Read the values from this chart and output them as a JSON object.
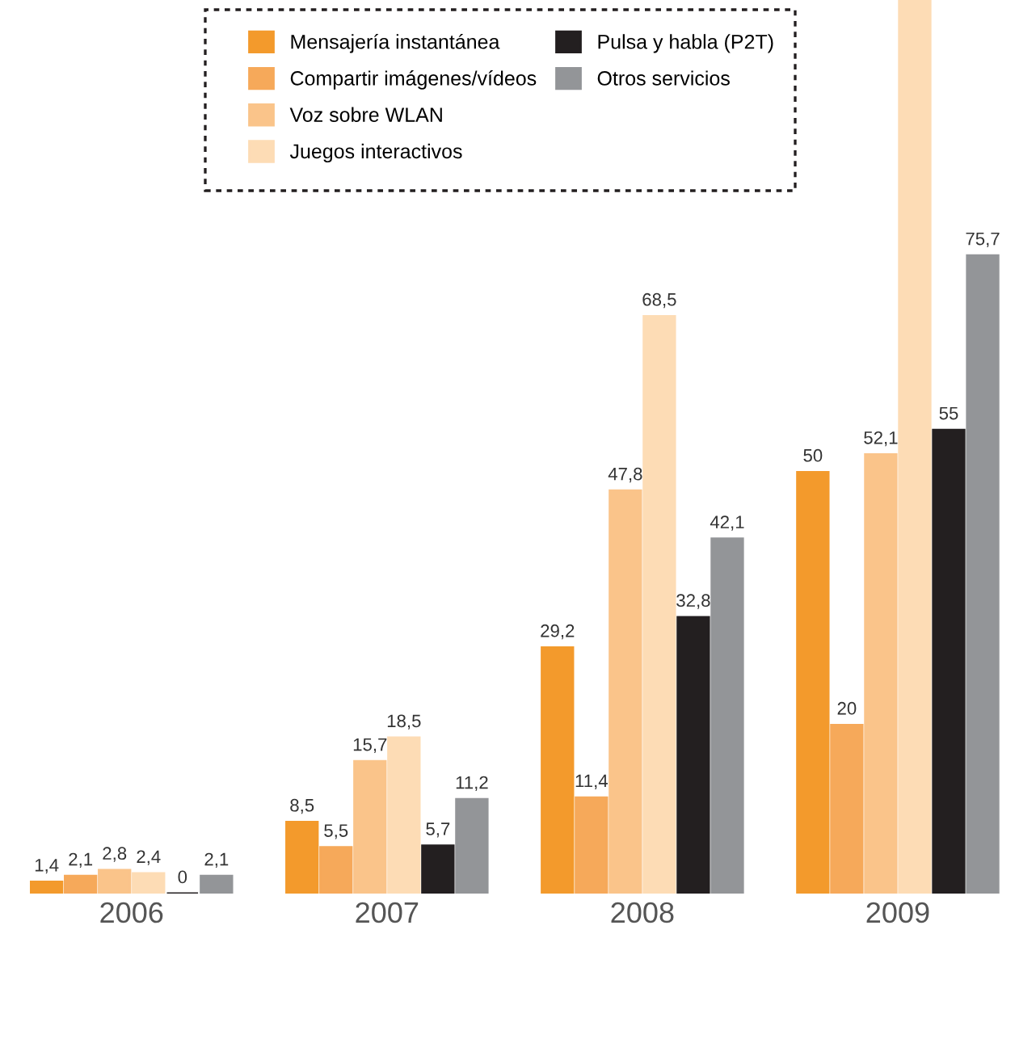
{
  "chart_data": {
    "type": "bar",
    "categories": [
      "2006",
      "2007",
      "2008",
      "2009"
    ],
    "series": [
      {
        "name": "Mensajería instantánea",
        "color": "#f39a2c",
        "values": [
          1.4,
          8.5,
          29.2,
          50
        ],
        "value_labels": [
          "1,4",
          "8,5",
          "29,2",
          "50"
        ]
      },
      {
        "name": "Compartir imágenes/vídeos",
        "color": "#f6a95a",
        "values": [
          2.1,
          5.5,
          11.4,
          20
        ],
        "value_labels": [
          "2,1",
          "5,5",
          "11,4",
          "20"
        ]
      },
      {
        "name": "Voz sobre WLAN",
        "color": "#fac48a",
        "values": [
          2.8,
          15.7,
          47.8,
          52.1
        ],
        "value_labels": [
          "2,8",
          "15,7",
          "47,8",
          "52,1"
        ]
      },
      {
        "name": "Juegos interactivos",
        "color": "#fddcb5",
        "values": [
          2.4,
          18.5,
          68.5,
          106
        ],
        "value_labels": [
          "2,4",
          "18,5",
          "68,5",
          null
        ]
      },
      {
        "name": "Pulsa y habla (P2T)",
        "color": "#231f20",
        "values": [
          0,
          5.7,
          32.8,
          55
        ],
        "value_labels": [
          "0",
          "5,7",
          "32,8",
          "55"
        ]
      },
      {
        "name": "Otros servicios",
        "color": "#939598",
        "values": [
          2.1,
          11.2,
          42.1,
          75.7
        ],
        "value_labels": [
          "2,1",
          "11,2",
          "42,1",
          "75,7"
        ]
      }
    ],
    "ylim": [
      0,
      106
    ],
    "tick_labels": "x",
    "grid": false,
    "legend": "top"
  }
}
